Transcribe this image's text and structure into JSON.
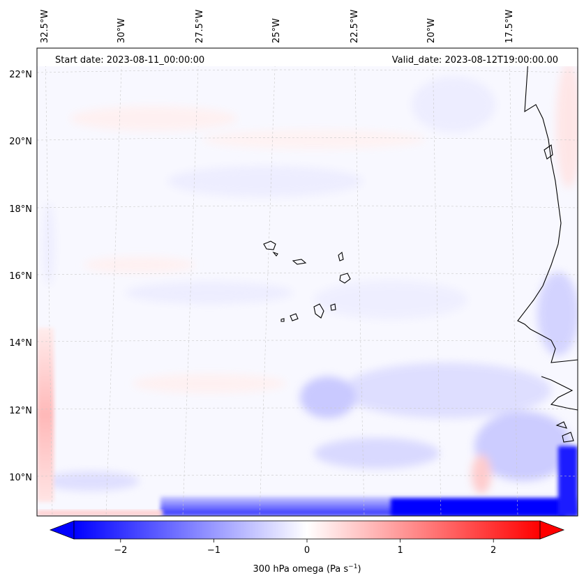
{
  "map": {
    "start_label": "Start date: 2023-08-11_00:00:00",
    "valid_label": "Valid_date: 2023-08-12T19:00:00.00",
    "lon_ticks": [
      "32.5°W",
      "30°W",
      "27.5°W",
      "25°W",
      "22.5°W",
      "20°W",
      "17.5°W"
    ],
    "lat_ticks": [
      "22°N",
      "20°N",
      "18°N",
      "16°N",
      "14°N",
      "12°N",
      "10°N"
    ],
    "extent": {
      "lon_min": -33.0,
      "lon_max": -15.5,
      "lat_min": 8.9,
      "lat_max": 22.8
    },
    "gridlines": true,
    "coastline_color": "#000000"
  },
  "colorbar": {
    "label": "300 hPa omega (Pa s",
    "label_exp": "−1",
    "label_close": ")",
    "ticks": [
      "−2",
      "−1",
      "0",
      "1",
      "2"
    ],
    "tick_values": [
      -2,
      -1,
      0,
      1,
      2
    ],
    "range": [
      -2.5,
      2.5
    ],
    "extend": "both",
    "cmap": "bwr",
    "colors": {
      "negative": "#0000ff",
      "zero": "#ffffff",
      "positive": "#ff0000"
    }
  }
}
